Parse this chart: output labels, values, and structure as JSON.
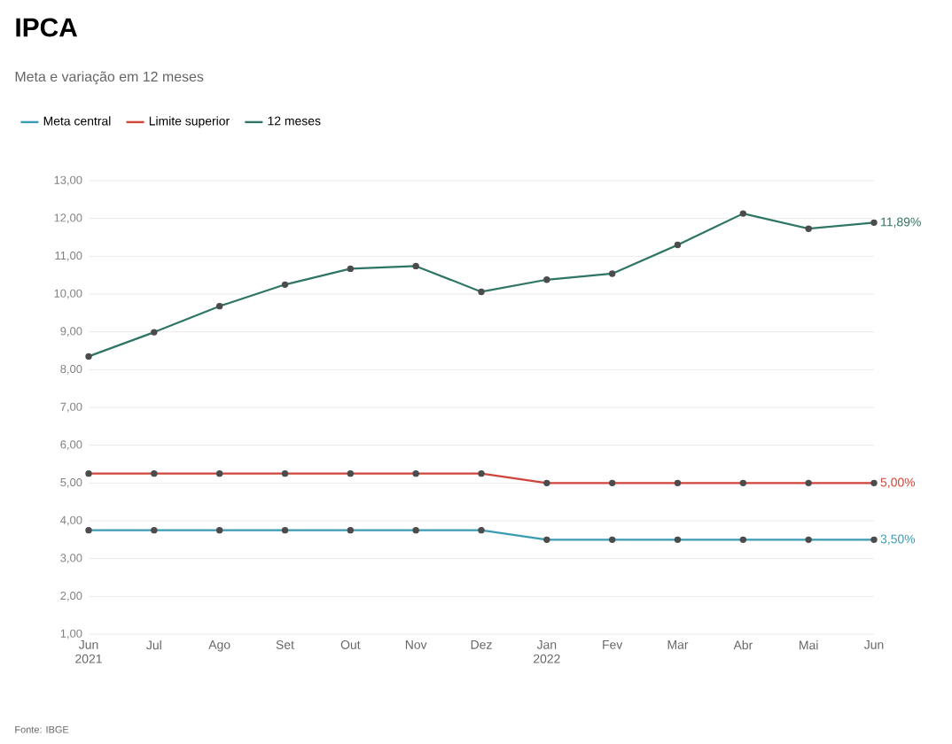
{
  "chart_data": {
    "type": "line",
    "title": "IPCA",
    "subtitle": "Meta e variação em 12 meses",
    "categories": [
      "Jun 2021",
      "Jul",
      "Ago",
      "Set",
      "Out",
      "Nov",
      "Dez",
      "Jan 2022",
      "Fev",
      "Mar",
      "Abr",
      "Mai",
      "Jun"
    ],
    "series": [
      {
        "name": "Meta central",
        "color": "#3b9bb3",
        "values": [
          3.75,
          3.75,
          3.75,
          3.75,
          3.75,
          3.75,
          3.75,
          3.5,
          3.5,
          3.5,
          3.5,
          3.5,
          3.5
        ],
        "value_labels": [
          null,
          null,
          null,
          null,
          null,
          null,
          null,
          null,
          null,
          null,
          null,
          null,
          "3,50%"
        ]
      },
      {
        "name": "Limite superior",
        "color": "#d0453a",
        "values": [
          5.25,
          5.25,
          5.25,
          5.25,
          5.25,
          5.25,
          5.25,
          5.0,
          5.0,
          5.0,
          5.0,
          5.0,
          5.0
        ],
        "value_labels": [
          null,
          null,
          null,
          null,
          null,
          null,
          null,
          null,
          null,
          null,
          null,
          null,
          "5,00%"
        ]
      },
      {
        "name": "12 meses",
        "color": "#2f7566",
        "values": [
          8.35,
          8.99,
          9.68,
          10.25,
          10.67,
          10.74,
          10.06,
          10.38,
          10.54,
          11.3,
          12.13,
          11.73,
          11.89
        ],
        "value_labels": [
          null,
          null,
          null,
          null,
          null,
          null,
          null,
          null,
          null,
          null,
          null,
          null,
          "11,89%"
        ]
      }
    ],
    "ylim": [
      1,
      13
    ],
    "yticks": [
      {
        "value": 1,
        "label": "1,00"
      },
      {
        "value": 2,
        "label": "2,00"
      },
      {
        "value": 3,
        "label": "3,00"
      },
      {
        "value": 4,
        "label": "4,00"
      },
      {
        "value": 5,
        "label": "5,00"
      },
      {
        "value": 6,
        "label": "6,00"
      },
      {
        "value": 7,
        "label": "7,00"
      },
      {
        "value": 8,
        "label": "8,00"
      },
      {
        "value": 9,
        "label": "9,00"
      },
      {
        "value": 10,
        "label": "10,00"
      },
      {
        "value": 11,
        "label": "11,00"
      },
      {
        "value": 12,
        "label": "12,00"
      },
      {
        "value": 13,
        "label": "13,00"
      }
    ],
    "grid": "y",
    "legend": "top left",
    "marker": "circle",
    "line_style": "solid",
    "annotations": [
      "Fonte: IBGE"
    ]
  }
}
